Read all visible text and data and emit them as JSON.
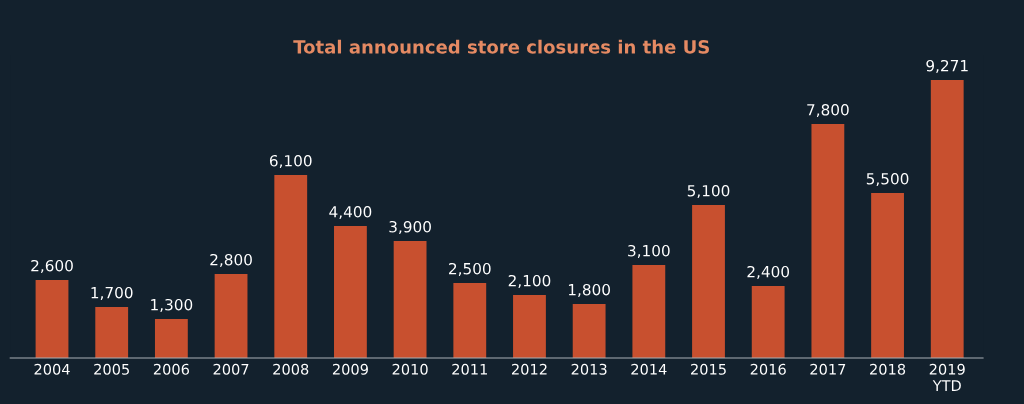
{
  "chart_data": {
    "type": "bar",
    "title": "Total announced store closures in the US",
    "categories": [
      "2004",
      "2005",
      "2006",
      "2007",
      "2008",
      "2009",
      "2010",
      "2011",
      "2012",
      "2013",
      "2014",
      "2015",
      "2016",
      "2017",
      "2018",
      "2019\nYTD"
    ],
    "values": [
      2600,
      1700,
      1300,
      2800,
      6100,
      4400,
      3900,
      2500,
      2100,
      1800,
      3100,
      5100,
      2400,
      7800,
      5500,
      9271
    ],
    "value_labels": [
      "2,600",
      "1,700",
      "1,300",
      "2,800",
      "6,100",
      "4,400",
      "3,900",
      "2,500",
      "2,100",
      "1,800",
      "3,100",
      "5,100",
      "2,400",
      "7,800",
      "5,500",
      "9,271"
    ],
    "color": "#c8502f"
  }
}
